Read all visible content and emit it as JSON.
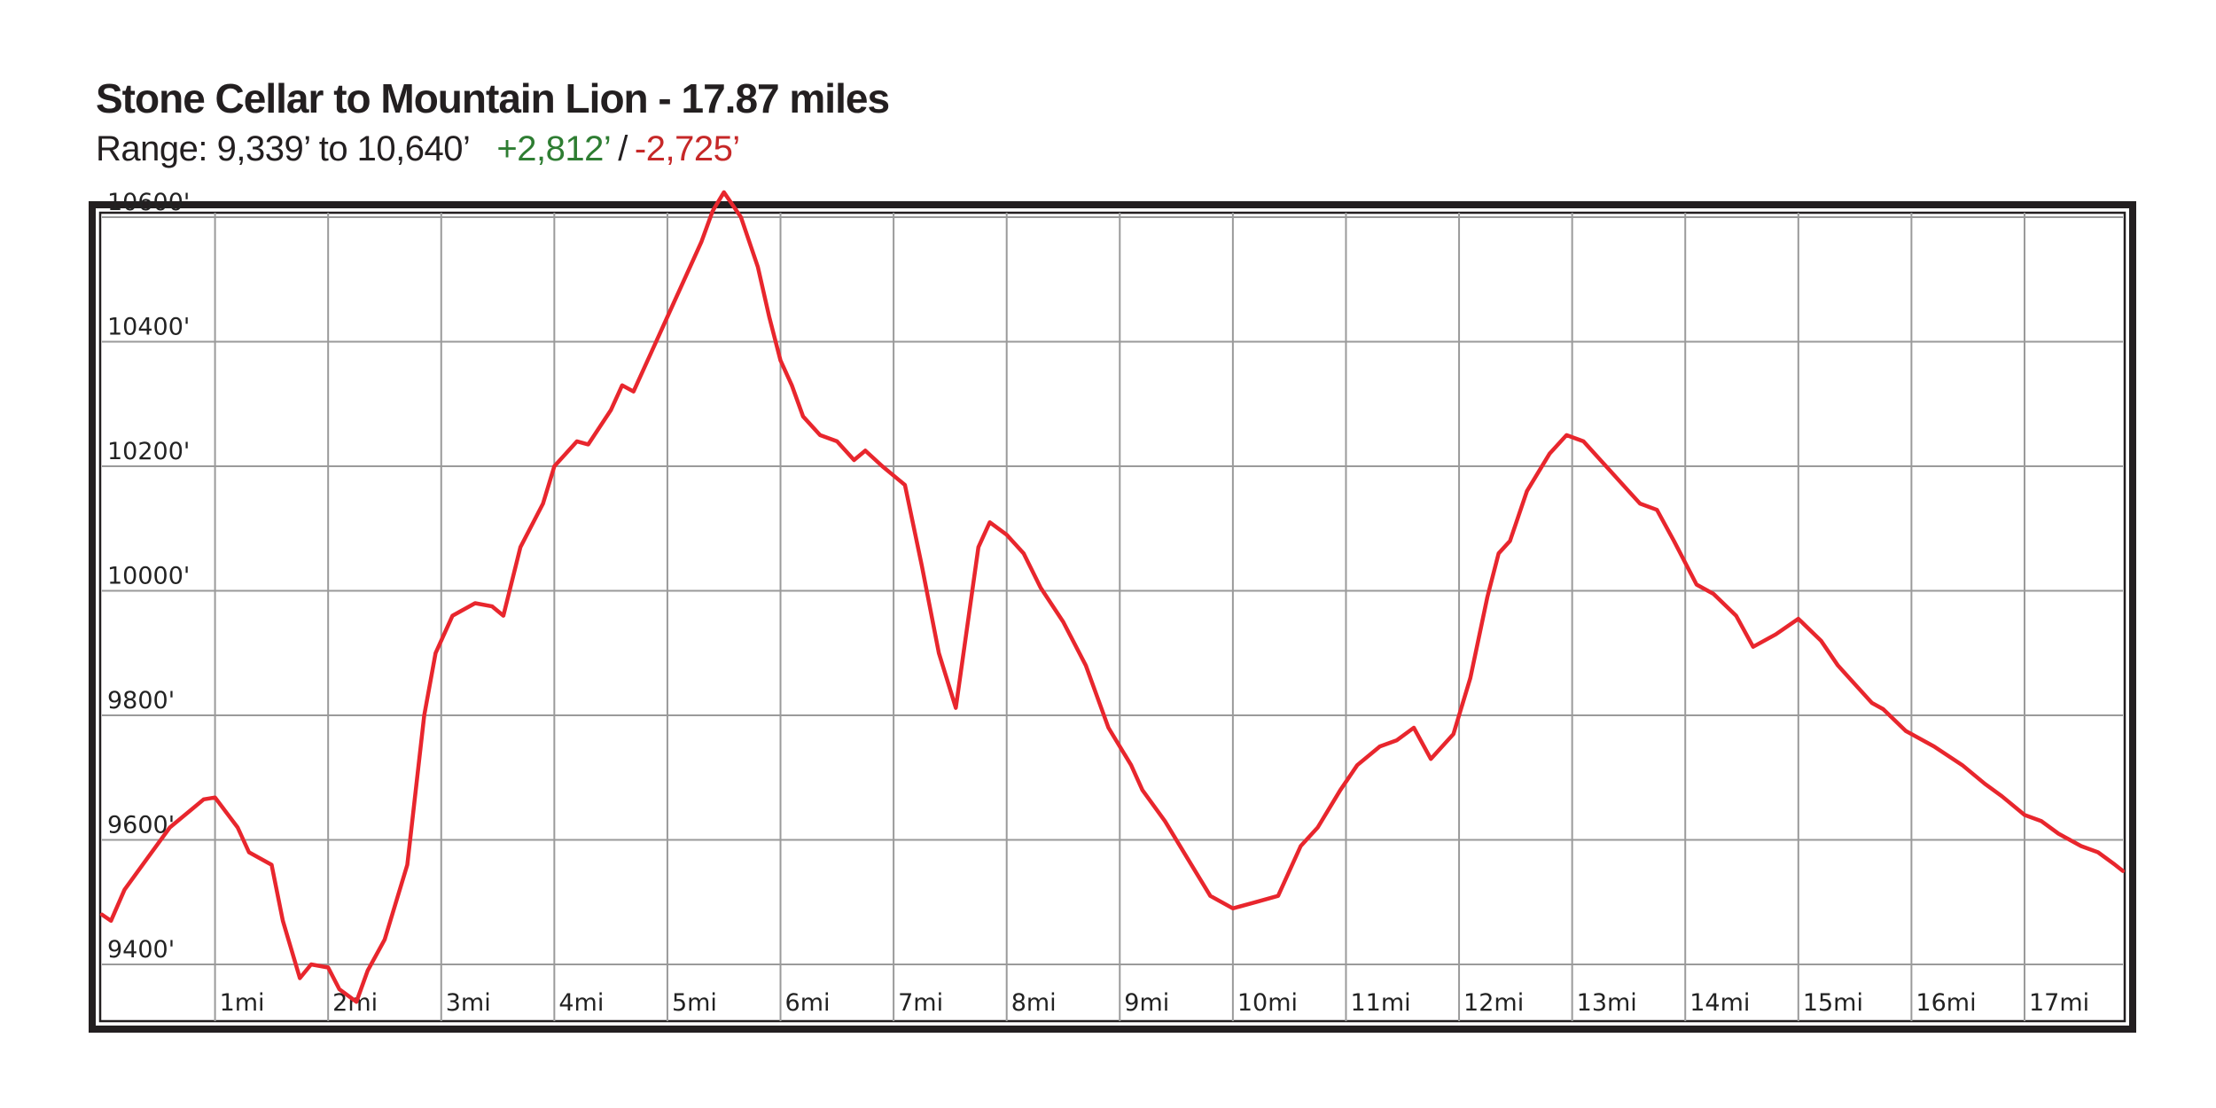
{
  "header": {
    "title": "Stone Cellar to Mountain Lion - 17.87 miles",
    "range_text": "Range: 9,339’ to 10,640’",
    "gain_text": "+2,812’",
    "separator": "/",
    "loss_text": "-2,725’"
  },
  "colors": {
    "line": "#e8262d",
    "gain": "#2e7d32",
    "loss": "#c62828",
    "grid": "#9a9a9a",
    "frame": "#231f20"
  },
  "chart_data": {
    "type": "line",
    "title": "Stone Cellar to Mountain Lion - 17.87 miles",
    "xlabel": "",
    "ylabel": "",
    "xlim": [
      0,
      17.87
    ],
    "ylim": [
      9339,
      10640
    ],
    "grid": true,
    "x_ticks": [
      1,
      2,
      3,
      4,
      5,
      6,
      7,
      8,
      9,
      10,
      11,
      12,
      13,
      14,
      15,
      16,
      17
    ],
    "x_tick_labels": [
      "1mi",
      "2mi",
      "3mi",
      "4mi",
      "5mi",
      "6mi",
      "7mi",
      "8mi",
      "9mi",
      "10mi",
      "11mi",
      "12mi",
      "13mi",
      "14mi",
      "15mi",
      "16mi",
      "17mi"
    ],
    "y_ticks": [
      9400,
      9600,
      9800,
      10000,
      10200,
      10400,
      10600
    ],
    "y_tick_labels": [
      "9400'",
      "9600'",
      "9800'",
      "10000'",
      "10200'",
      "10400'",
      "10600'"
    ],
    "series": [
      {
        "x": [
          0.0,
          0.08,
          0.2,
          0.4,
          0.6,
          0.8,
          0.9,
          1.0,
          1.2,
          1.3,
          1.5,
          1.6,
          1.75,
          1.85,
          2.0,
          2.1,
          2.25,
          2.35,
          2.5,
          2.7,
          2.85,
          2.95,
          3.1,
          3.3,
          3.45,
          3.55,
          3.7,
          3.9,
          4.0,
          4.2,
          4.3,
          4.5,
          4.6,
          4.7,
          4.9,
          5.1,
          5.3,
          5.4,
          5.5,
          5.65,
          5.8,
          5.9,
          6.0,
          6.1,
          6.2,
          6.35,
          6.5,
          6.65,
          6.75,
          6.9,
          7.1,
          7.25,
          7.4,
          7.55,
          7.75,
          7.85,
          8.0,
          8.15,
          8.3,
          8.5,
          8.7,
          8.9,
          9.1,
          9.2,
          9.4,
          9.6,
          9.8,
          10.0,
          10.2,
          10.4,
          10.6,
          10.75,
          10.95,
          11.1,
          11.3,
          11.45,
          11.6,
          11.75,
          11.95,
          12.1,
          12.25,
          12.35,
          12.45,
          12.6,
          12.8,
          12.95,
          13.1,
          13.3,
          13.5,
          13.6,
          13.75,
          13.9,
          14.1,
          14.25,
          14.45,
          14.6,
          14.8,
          15.0,
          15.2,
          15.35,
          15.5,
          15.65,
          15.75,
          15.95,
          16.2,
          16.45,
          16.65,
          16.8,
          17.0,
          17.15,
          17.3,
          17.5,
          17.65,
          17.8,
          17.87
        ],
        "y": [
          9480,
          9470,
          9520,
          9570,
          9620,
          9650,
          9665,
          9668,
          9620,
          9580,
          9560,
          9470,
          9378,
          9400,
          9395,
          9360,
          9340,
          9390,
          9440,
          9560,
          9800,
          9900,
          9960,
          9980,
          9975,
          9960,
          10070,
          10140,
          10200,
          10240,
          10235,
          10290,
          10330,
          10320,
          10400,
          10480,
          10560,
          10610,
          10640,
          10600,
          10520,
          10440,
          10370,
          10330,
          10280,
          10250,
          10240,
          10210,
          10225,
          10200,
          10170,
          10040,
          9900,
          9812,
          10070,
          10110,
          10090,
          10060,
          10005,
          9950,
          9880,
          9780,
          9720,
          9680,
          9630,
          9570,
          9510,
          9490,
          9500,
          9510,
          9590,
          9620,
          9680,
          9720,
          9750,
          9760,
          9780,
          9730,
          9770,
          9860,
          9990,
          10060,
          10080,
          10160,
          10220,
          10250,
          10240,
          10200,
          10160,
          10140,
          10130,
          10080,
          10010,
          9995,
          9960,
          9910,
          9930,
          9955,
          9920,
          9880,
          9850,
          9820,
          9810,
          9775,
          9750,
          9720,
          9690,
          9670,
          9640,
          9630,
          9610,
          9590,
          9580,
          9560,
          9550
        ]
      }
    ]
  }
}
